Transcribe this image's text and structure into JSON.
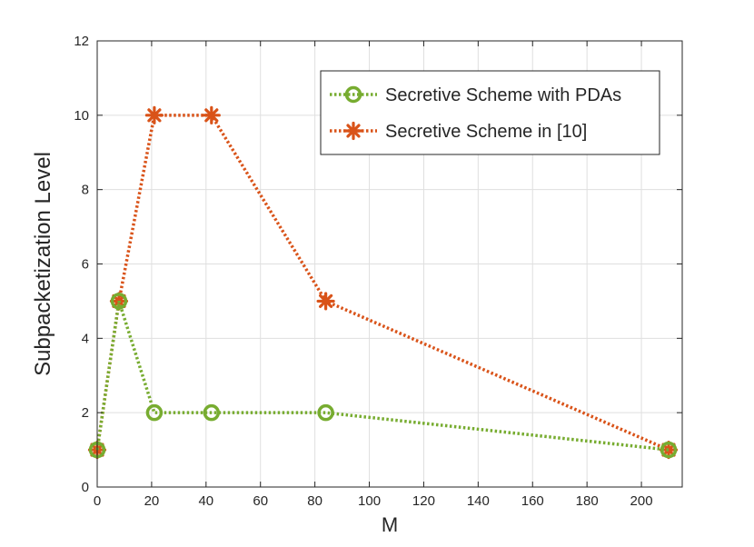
{
  "chart_data": {
    "type": "line",
    "title": "",
    "xlabel": "M",
    "ylabel": "Subpacketization Level",
    "xlim": [
      0,
      215
    ],
    "ylim": [
      0,
      12
    ],
    "xticks": [
      0,
      20,
      40,
      60,
      80,
      100,
      120,
      140,
      160,
      180,
      200
    ],
    "yticks": [
      0,
      2,
      4,
      6,
      8,
      10,
      12
    ],
    "grid": true,
    "legend_position": "top-right",
    "series": [
      {
        "name": "Secretive Scheme with PDAs",
        "color": "#77ac30",
        "marker": "circle",
        "line_style": "dotted",
        "x": [
          0,
          8,
          21,
          42,
          84,
          210
        ],
        "y": [
          1,
          5,
          2,
          2,
          2,
          1
        ]
      },
      {
        "name": "Secretive Scheme in [10]",
        "color": "#d95319",
        "marker": "asterisk",
        "line_style": "dotted",
        "x": [
          0,
          8,
          21,
          42,
          84,
          210
        ],
        "y": [
          1,
          5,
          10,
          10,
          5,
          1
        ]
      }
    ]
  }
}
